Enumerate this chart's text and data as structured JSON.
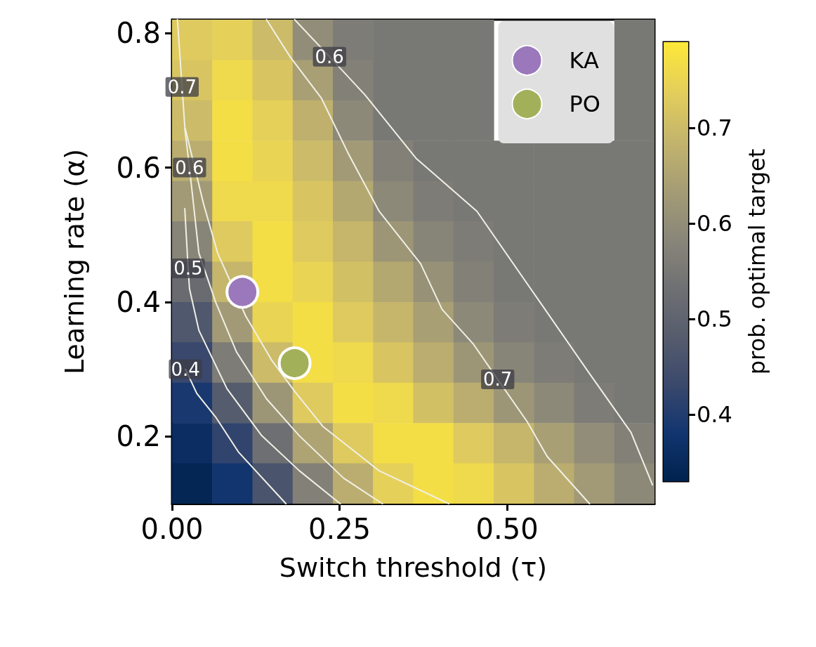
{
  "chart_data": {
    "type": "heatmap",
    "xlabel": "Switch threshold (τ)",
    "ylabel": "Learning rate (α)",
    "clabel": "prob. optimal target",
    "xlim": [
      0,
      0.72
    ],
    "xticks": [
      {
        "value": 0,
        "label": "0.00"
      },
      {
        "value": 0.25,
        "label": "0.25"
      },
      {
        "value": 0.5,
        "label": "0.50"
      }
    ],
    "ylim": [
      0.1,
      0.82
    ],
    "yticks": [
      0.2,
      0.4,
      0.6,
      0.8
    ],
    "clim": [
      0.33,
      0.79
    ],
    "cticks": [
      0.4,
      0.5,
      0.6,
      0.7
    ],
    "cells": [
      [
        0.73,
        0.74,
        0.7,
        0.6,
        0.56,
        0.55,
        0.55,
        0.55,
        null,
        null,
        null,
        0.55
      ],
      [
        0.72,
        0.76,
        0.72,
        0.64,
        0.57,
        0.55,
        0.55,
        0.55,
        null,
        null,
        null,
        0.55
      ],
      [
        0.7,
        0.77,
        0.74,
        0.68,
        0.59,
        0.55,
        0.55,
        0.55,
        null,
        null,
        null,
        0.55
      ],
      [
        0.67,
        0.77,
        0.75,
        0.7,
        0.63,
        0.57,
        0.55,
        0.55,
        0.55,
        0.55,
        0.55,
        0.55
      ],
      [
        0.63,
        0.76,
        0.76,
        0.72,
        0.66,
        0.59,
        0.56,
        0.55,
        0.55,
        0.55,
        0.55,
        0.55
      ],
      [
        0.58,
        0.73,
        0.77,
        0.73,
        0.69,
        0.62,
        0.58,
        0.56,
        0.55,
        0.55,
        0.55,
        0.55
      ],
      [
        0.52,
        0.69,
        0.77,
        0.75,
        0.71,
        0.66,
        0.61,
        0.57,
        0.55,
        0.55,
        0.55,
        0.55
      ],
      [
        0.47,
        0.63,
        0.75,
        0.77,
        0.73,
        0.69,
        0.64,
        0.59,
        0.56,
        0.55,
        0.55,
        0.55
      ],
      [
        0.43,
        0.56,
        0.7,
        0.77,
        0.76,
        0.72,
        0.67,
        0.62,
        0.58,
        0.56,
        0.55,
        0.55
      ],
      [
        0.39,
        0.48,
        0.62,
        0.73,
        0.77,
        0.76,
        0.71,
        0.67,
        0.62,
        0.59,
        0.56,
        0.55
      ],
      [
        0.36,
        0.42,
        0.53,
        0.65,
        0.73,
        0.77,
        0.77,
        0.73,
        0.69,
        0.64,
        0.6,
        0.57
      ],
      [
        0.34,
        0.38,
        0.46,
        0.57,
        0.67,
        0.74,
        0.77,
        0.76,
        0.72,
        0.67,
        0.63,
        0.59
      ]
    ],
    "series": [
      {
        "type": "line",
        "color": "#f0f0e6",
        "marker": "none",
        "x": [
          0.141,
          0.176,
          0.223,
          0.264,
          0.309,
          0.371,
          0.403,
          0.45,
          0.486,
          0.53,
          0.56,
          0.623
        ],
        "values": [
          0.82,
          0.765,
          0.703,
          0.619,
          0.535,
          0.457,
          0.389,
          0.337,
          0.285,
          0.222,
          0.17,
          0.1
        ]
      },
      {
        "type": "line",
        "color": "#f0f0e6",
        "marker": "none",
        "x": [
          0.183,
          0.235,
          0.288,
          0.364,
          0.455,
          0.549,
          0.622,
          0.685,
          0.717
        ],
        "values": [
          0.82,
          0.765,
          0.708,
          0.614,
          0.535,
          0.4,
          0.295,
          0.206,
          0.128
        ]
      },
      {
        "type": "line",
        "color": "#f0f0e6",
        "marker": "none",
        "x": [
          0.008,
          0.015,
          0.019,
          0.047,
          0.068,
          0.11,
          0.149,
          0.183,
          0.225,
          0.309,
          0.413
        ],
        "values": [
          0.82,
          0.72,
          0.661,
          0.546,
          0.473,
          0.379,
          0.313,
          0.267,
          0.215,
          0.149,
          0.1
        ]
      },
      {
        "type": "line",
        "color": "#f0f0e6",
        "marker": "none",
        "x": [
          0.019,
          0.026,
          0.04,
          0.065,
          0.096,
          0.141,
          0.19,
          0.256,
          0.314
        ],
        "values": [
          0.658,
          0.6,
          0.473,
          0.4,
          0.326,
          0.256,
          0.201,
          0.138,
          0.1
        ]
      },
      {
        "type": "line",
        "color": "#f0f0e6",
        "marker": "none",
        "x": [
          0.019,
          0.024,
          0.026,
          0.04,
          0.082,
          0.134,
          0.19,
          0.251
        ],
        "values": [
          0.539,
          0.45,
          0.42,
          0.358,
          0.271,
          0.201,
          0.149,
          0.1
        ]
      },
      {
        "type": "line",
        "color": "#f0f0e6",
        "marker": "none",
        "x": [
          0.02,
          0.037,
          0.065,
          0.099,
          0.17
        ],
        "values": [
          0.3,
          0.264,
          0.229,
          0.177,
          0.1
        ]
      },
      {
        "type": "scatter",
        "name": "KA",
        "color": "#9b78bb",
        "marker": "circle",
        "x": [
          0.105
        ],
        "values": [
          0.415
        ]
      },
      {
        "type": "scatter",
        "name": "PO",
        "color": "#a3b05a",
        "marker": "circle",
        "x": [
          0.183
        ],
        "values": [
          0.309
        ]
      }
    ],
    "annotations": [
      {
        "text": "0.6",
        "x": 0.235,
        "y": 0.765
      },
      {
        "text": "0.7",
        "x": 0.486,
        "y": 0.285
      },
      {
        "text": "0.7",
        "x": 0.015,
        "y": 0.72
      },
      {
        "text": "0.6",
        "x": 0.026,
        "y": 0.6
      },
      {
        "text": "0.5",
        "x": 0.024,
        "y": 0.45
      },
      {
        "text": "0.4",
        "x": 0.02,
        "y": 0.3
      }
    ],
    "legend": "top right"
  }
}
